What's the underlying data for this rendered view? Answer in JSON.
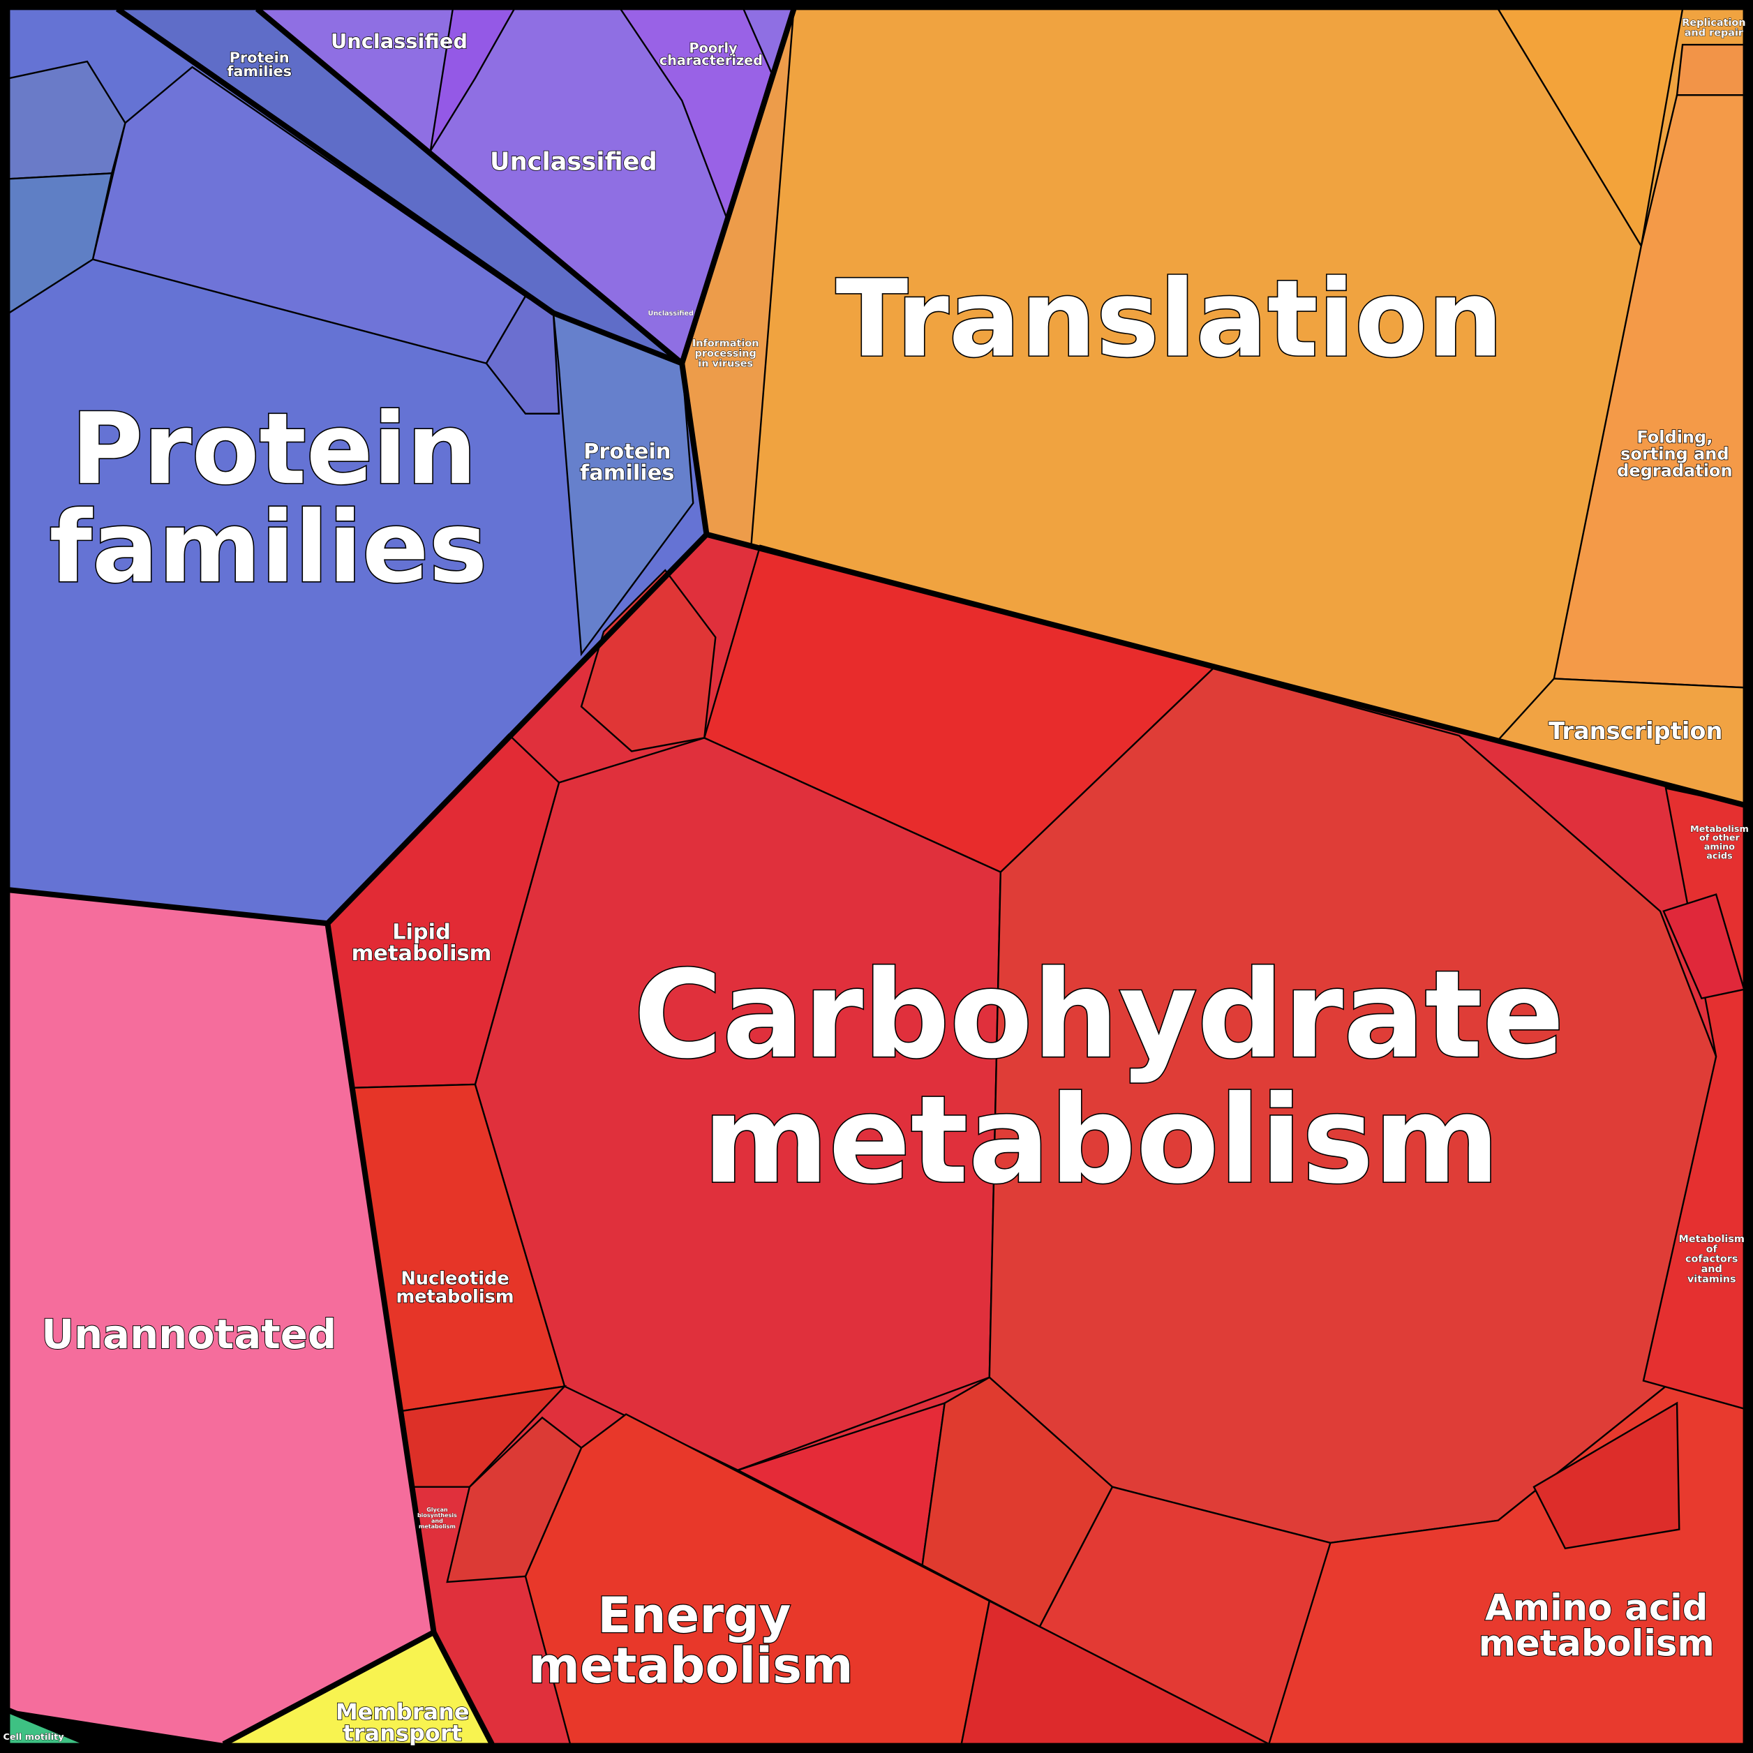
{
  "labels": [
    {
      "lines": [
        "Protein",
        "families"
      ]
    },
    {
      "lines": [
        "Protein",
        "families"
      ]
    },
    {
      "lines": [
        "Protein",
        "families"
      ]
    },
    {
      "lines": [
        "Unclassified"
      ]
    },
    {
      "lines": [
        "Unclassified"
      ]
    },
    {
      "lines": [
        "Poorly",
        "characterized"
      ]
    },
    {
      "lines": [
        "Unclassified"
      ]
    },
    {
      "lines": [
        "Information",
        "processing",
        "in viruses"
      ]
    },
    {
      "lines": [
        "Translation"
      ]
    },
    {
      "lines": [
        "Replication",
        "and repair"
      ]
    },
    {
      "lines": [
        "Folding,",
        "sorting and",
        "degradation"
      ]
    },
    {
      "lines": [
        "Transcription"
      ]
    },
    {
      "lines": [
        "Carbohydrate",
        "metabolism"
      ]
    },
    {
      "lines": [
        "Lipid",
        "metabolism"
      ]
    },
    {
      "lines": [
        "Nucleotide",
        "metabolism"
      ]
    },
    {
      "lines": [
        "Energy",
        "metabolism"
      ]
    },
    {
      "lines": [
        "Amino acid",
        "metabolism"
      ]
    },
    {
      "lines": [
        "Metabolism",
        "of other",
        "amino",
        "acids"
      ]
    },
    {
      "lines": [
        "Metabolism",
        "of",
        "cofactors",
        "and",
        "vitamins"
      ]
    },
    {
      "lines": [
        "Glycan",
        "biosynthesis",
        "and",
        "metabolism"
      ]
    },
    {
      "lines": [
        "Unannotated"
      ]
    },
    {
      "lines": [
        "Membrane",
        "transport"
      ]
    },
    {
      "lines": [
        "Cell motility"
      ]
    }
  ]
}
